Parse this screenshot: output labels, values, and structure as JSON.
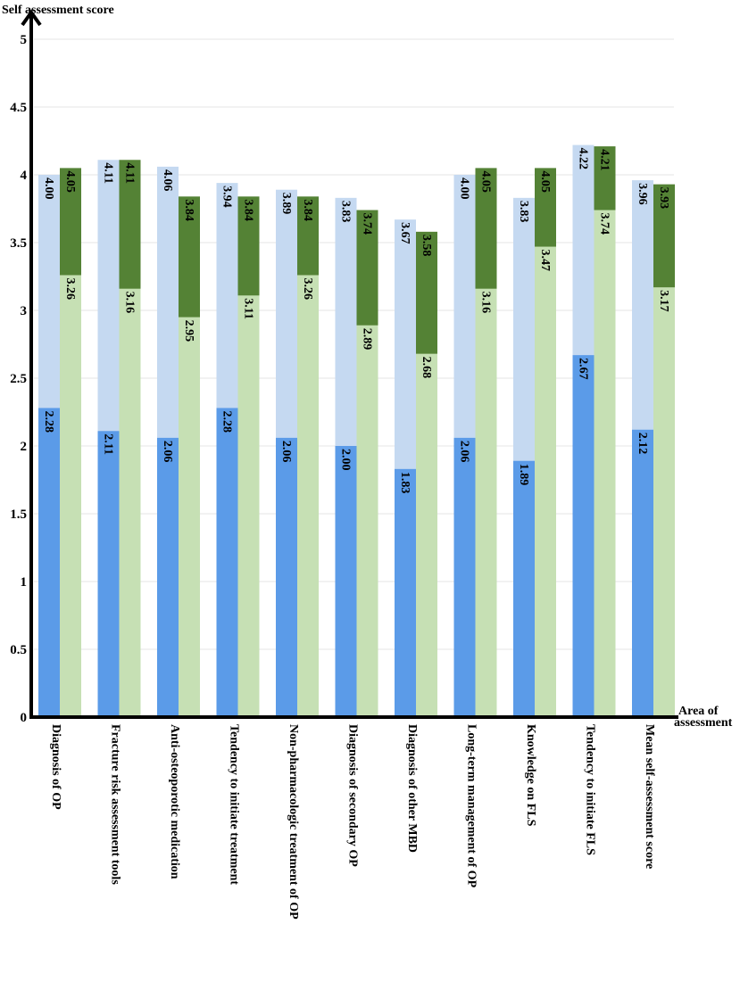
{
  "chart_data": {
    "type": "bar",
    "ylabel": "Self assessment score",
    "xlabel": "Area  of assessment",
    "ylim": [
      0,
      5
    ],
    "yticks": [
      "0",
      "0.5",
      "1",
      "1.5",
      "2",
      "2.5",
      "3",
      "3.5",
      "4",
      "4.5",
      "5"
    ],
    "grid": true,
    "categories": [
      "Diagnosis of OP",
      "Fracture risk assessment tools",
      "Anti-osteoporotic medication",
      "Tendency to initiate treatment",
      "Non-pharmacologic treatment of OP",
      "Diagnosis of secondary OP",
      "Diagnosis of other MBD",
      "Long-term management of OP",
      "Knowledge on FLS",
      "Tendency to initiate FLS",
      "Mean self-assessment score"
    ],
    "series": [
      {
        "values": [
          2.28,
          2.11,
          2.06,
          2.28,
          2.06,
          2.0,
          1.83,
          2.06,
          1.89,
          2.67,
          2.12
        ],
        "labels": [
          "2.28",
          "2.11",
          "2.06",
          "2.28",
          "2.06",
          "2.00",
          "1.83",
          "2.06",
          "1.89",
          "2.67",
          "2.12"
        ]
      },
      {
        "values": [
          4.0,
          4.11,
          4.06,
          3.94,
          3.89,
          3.83,
          3.67,
          4.0,
          3.83,
          4.22,
          3.96
        ],
        "labels": [
          "4.00",
          "4.11",
          "4.06",
          "3.94",
          "3.89",
          "3.83",
          "3.67",
          "4.00",
          "3.83",
          "4.22",
          "3.96"
        ]
      },
      {
        "values": [
          3.26,
          3.16,
          2.95,
          3.11,
          3.26,
          2.89,
          2.68,
          3.16,
          3.47,
          3.74,
          3.17
        ],
        "labels": [
          "3.26",
          "3.16",
          "2.95",
          "3.11",
          "3.26",
          "2.89",
          "2.68",
          "3.16",
          "3.47",
          "3.74",
          "3.17"
        ]
      },
      {
        "values": [
          4.05,
          4.11,
          3.84,
          3.84,
          3.84,
          3.74,
          3.58,
          4.05,
          4.05,
          4.21,
          3.93
        ],
        "labels": [
          "4.05",
          "4.11",
          "3.84",
          "3.84",
          "3.84",
          "3.74",
          "3.58",
          "4.05",
          "4.05",
          "4.21",
          "3.93"
        ]
      }
    ],
    "colors": {
      "left_back": "#c5d9f1",
      "left_front": "#5b9be8",
      "right_back": "#548235",
      "right_front": "#c6e0b4",
      "grid": "#e4e4e4",
      "axis": "#000000"
    }
  }
}
